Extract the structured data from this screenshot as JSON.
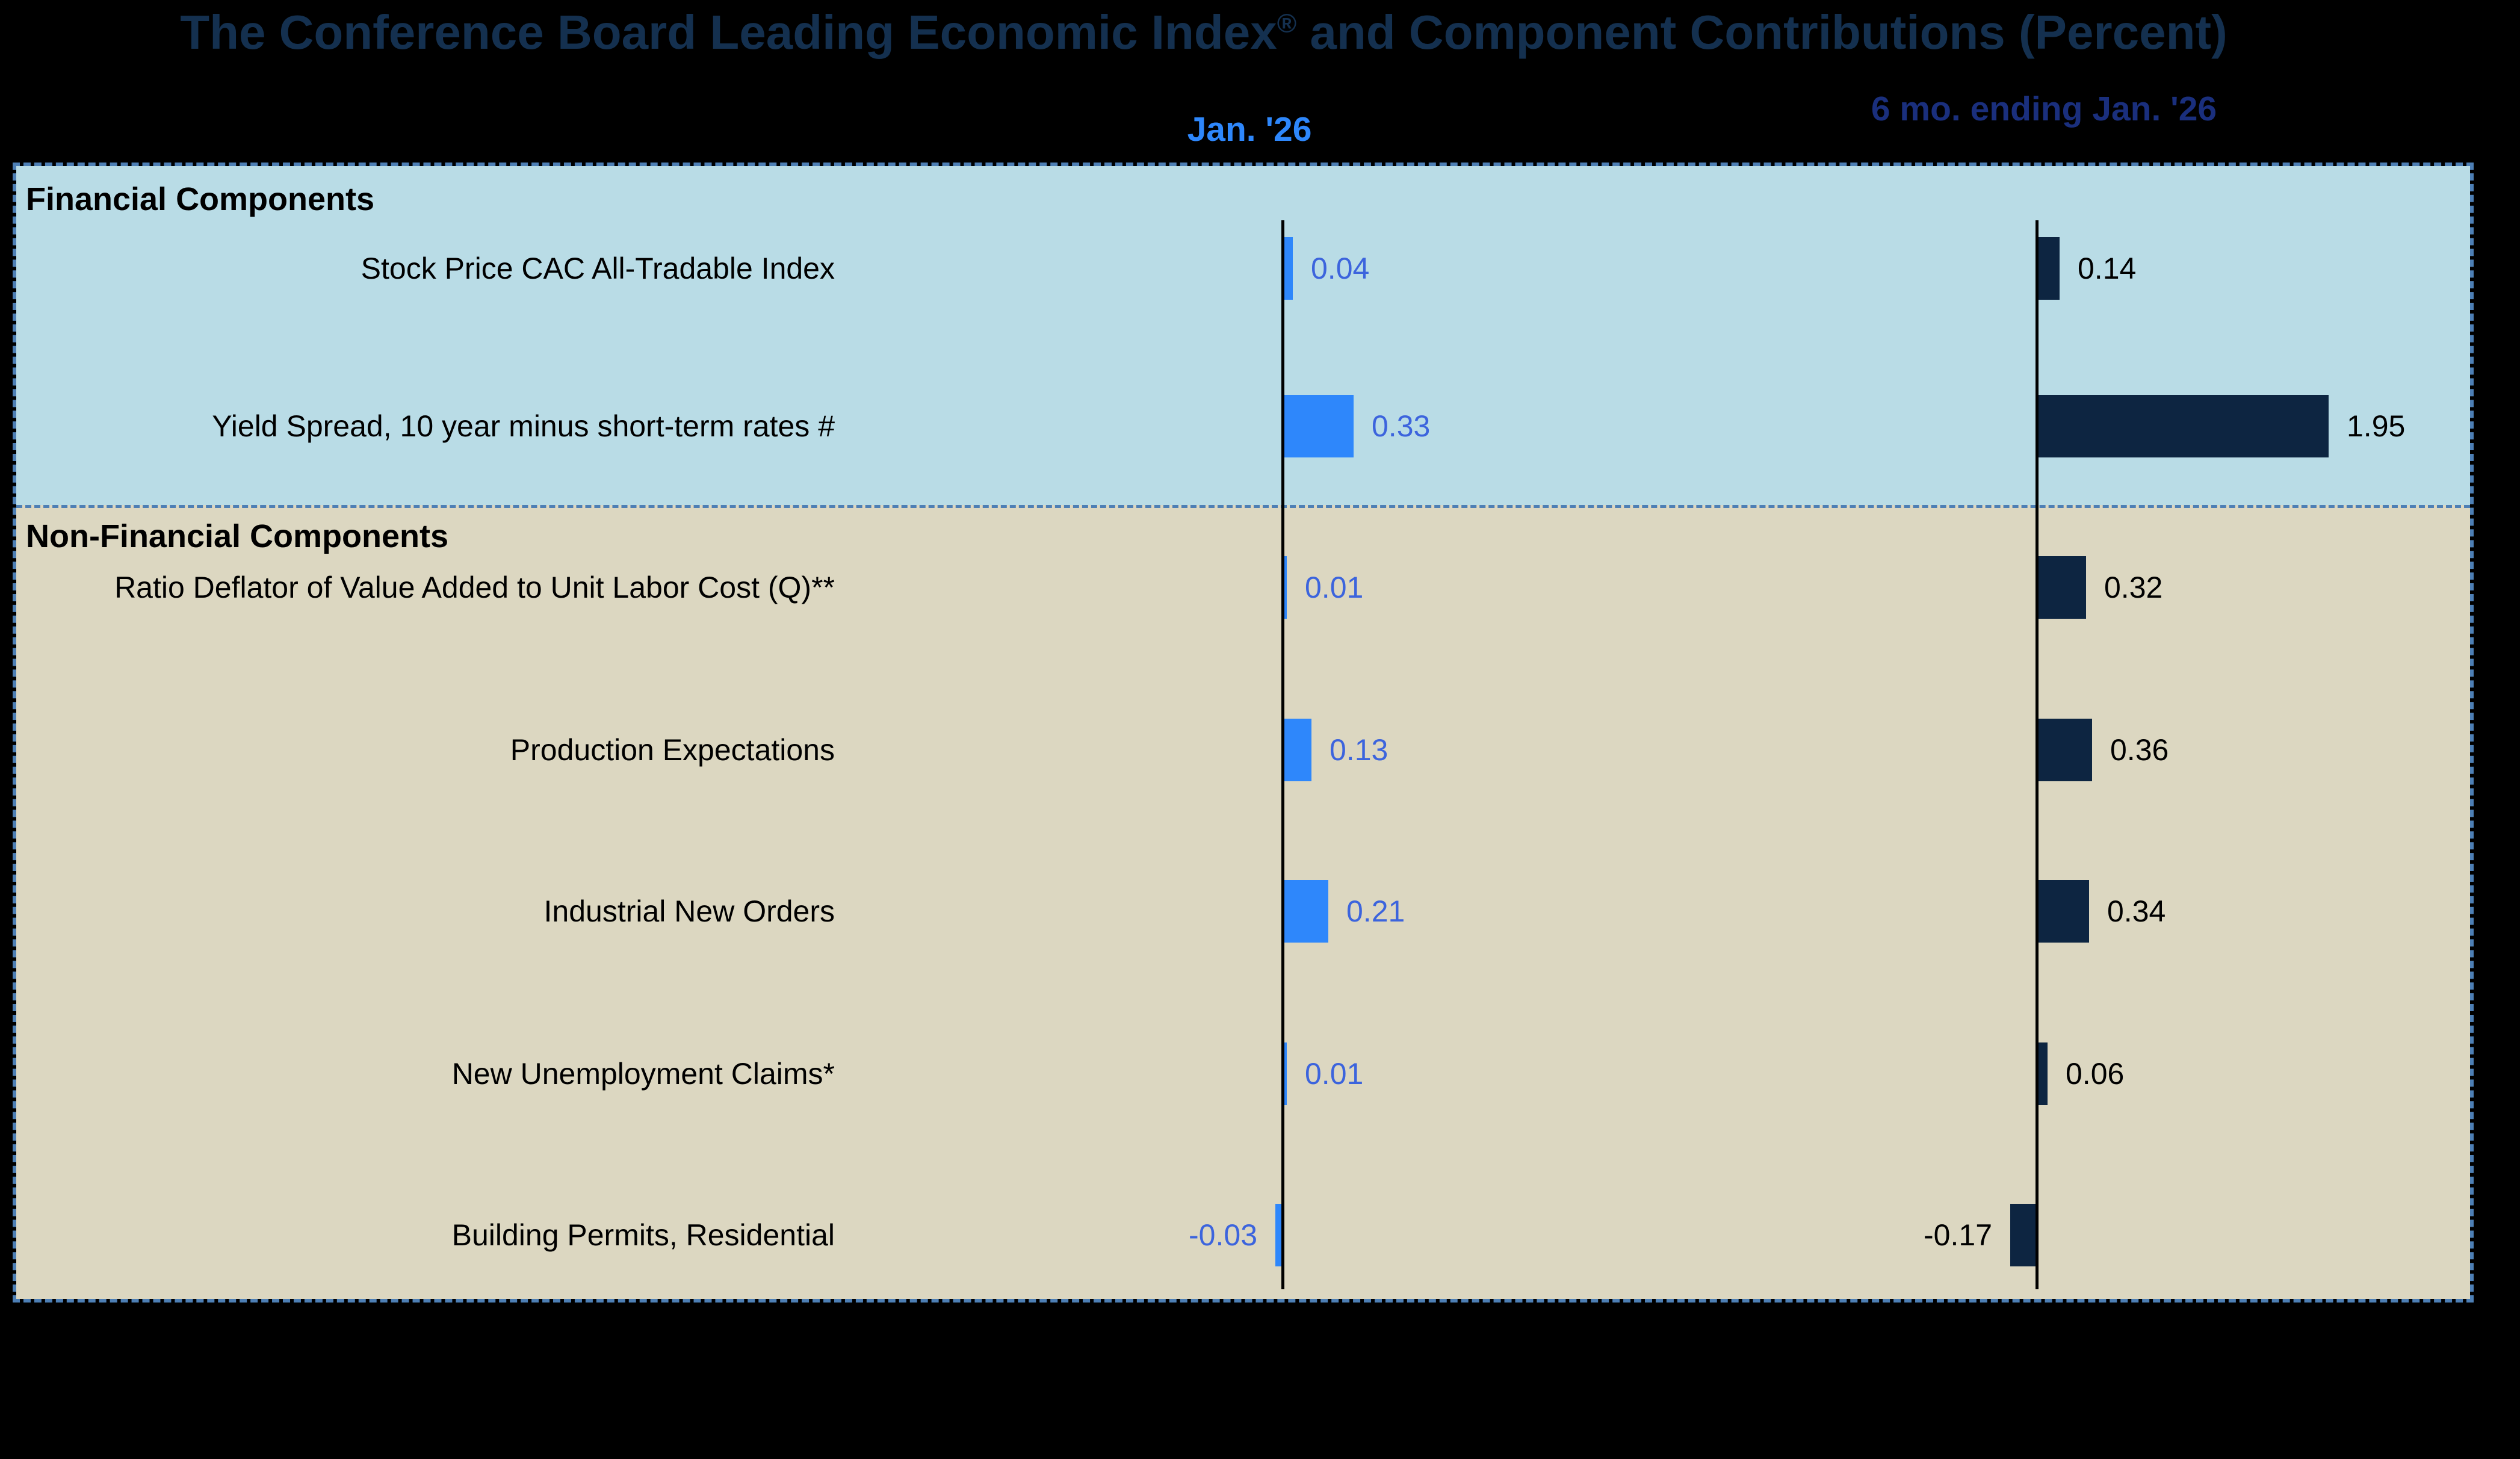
{
  "title": "The Conference Board Leading Economic Index® and Component Contributions (Percent)",
  "column_headers": {
    "jan": "Jan. '26",
    "six_mo": "6 mo. ending Jan. '26"
  },
  "colors": {
    "background": "#000000",
    "title_text": "#14304f",
    "jan_header_text": "#2e87fb",
    "six_mo_header_text": "#1a2f7d",
    "financial_band": "#b9dce6",
    "nonfinancial_band": "#dcd7c1",
    "box_border": "#4d7fb5",
    "jan_bar": "#2e87fb",
    "six_mo_bar": "#0d2541",
    "jan_value_text": "#3c64dd",
    "six_mo_value_text": "#000000",
    "axis": "#000000"
  },
  "chart_data": {
    "type": "bar",
    "orientation": "horizontal",
    "title": "The Conference Board Leading Economic Index® and Component Contributions (Percent)",
    "columns": [
      "Jan. '26",
      "6 mo. ending Jan. '26"
    ],
    "legend_position": "top",
    "grid": false,
    "sections": [
      {
        "name": "Financial Components",
        "rows": [
          {
            "label": "Stock Price CAC All-Tradable Index",
            "jan": 0.04,
            "six_mo": 0.14
          },
          {
            "label": "Yield Spread, 10 year minus short-term rates #",
            "jan": 0.33,
            "six_mo": 1.95
          }
        ]
      },
      {
        "name": "Non-Financial Components",
        "rows": [
          {
            "label": "Ratio Deflator of Value Added to Unit Labor Cost (Q)**",
            "jan": 0.01,
            "six_mo": 0.32
          },
          {
            "label": "Production Expectations",
            "jan": 0.13,
            "six_mo": 0.36
          },
          {
            "label": "Industrial New Orders",
            "jan": 0.21,
            "six_mo": 0.34
          },
          {
            "label": "New Unemployment Claims*",
            "jan": 0.01,
            "six_mo": 0.06
          },
          {
            "label": "Building Permits, Residential",
            "jan": -0.03,
            "six_mo": -0.17
          }
        ]
      }
    ]
  }
}
